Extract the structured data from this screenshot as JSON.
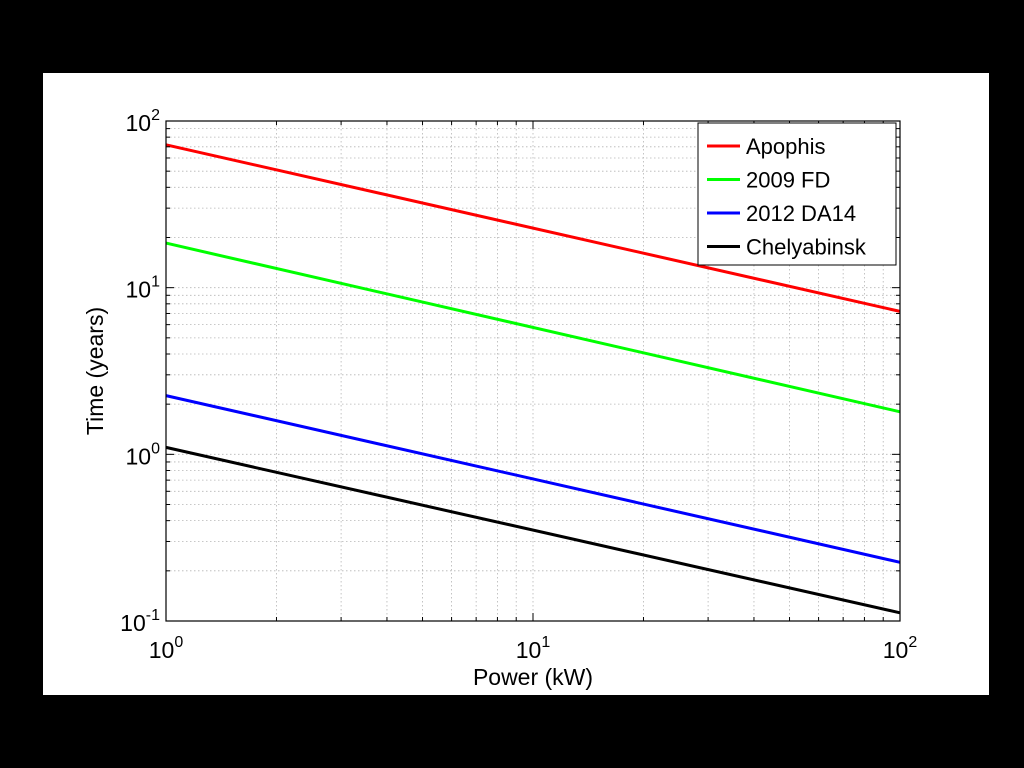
{
  "chart_data": {
    "type": "line",
    "xlabel": "Power (kW)",
    "ylabel": "Time (years)",
    "x_scale": "log",
    "y_scale": "log",
    "xlim": [
      1,
      100
    ],
    "ylim": [
      0.1,
      100
    ],
    "x_ticks": [
      {
        "base": "10",
        "exp": "0",
        "value": 1
      },
      {
        "base": "10",
        "exp": "1",
        "value": 10
      },
      {
        "base": "10",
        "exp": "2",
        "value": 100
      }
    ],
    "y_ticks": [
      {
        "base": "10",
        "exp": "-1",
        "value": 0.1
      },
      {
        "base": "10",
        "exp": "0",
        "value": 1
      },
      {
        "base": "10",
        "exp": "1",
        "value": 10
      },
      {
        "base": "10",
        "exp": "2",
        "value": 100
      }
    ],
    "grid": true,
    "legend_position": "top-right",
    "series": [
      {
        "name": "Apophis",
        "color": "#ff0000",
        "x": [
          1,
          100
        ],
        "y": [
          72,
          7.2
        ]
      },
      {
        "name": "2009 FD",
        "color": "#00ff00",
        "x": [
          1,
          100
        ],
        "y": [
          18.5,
          1.8
        ]
      },
      {
        "name": "2012 DA14",
        "color": "#0000ff",
        "x": [
          1,
          100
        ],
        "y": [
          2.25,
          0.225
        ]
      },
      {
        "name": "Chelyabinsk",
        "color": "#000000",
        "x": [
          1,
          100
        ],
        "y": [
          1.1,
          0.112
        ]
      }
    ]
  }
}
